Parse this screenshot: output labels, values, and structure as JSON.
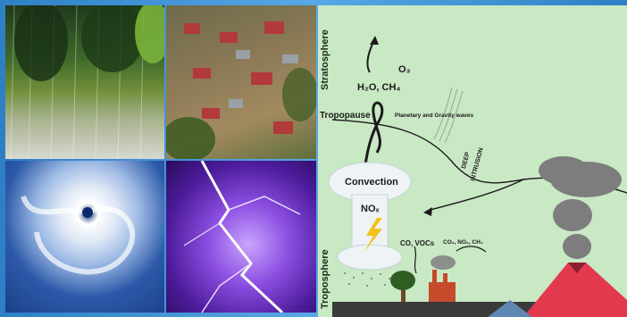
{
  "labels": {
    "stratosphere": "Stratosphere",
    "troposphere": "Troposphere",
    "tropopause": "Tropopause",
    "o3": "O₃",
    "h2o_ch4": "H₂O, CH₄",
    "waves": "Planetary and Gravity waves",
    "deep_intrusion_1": "DEEP",
    "deep_intrusion_2": "INTRUSION",
    "convection": "Convection",
    "nox": "NOₓ",
    "co_vocs": "CO, VOCs",
    "co2_no2_ch4": "CO₂, NO₂, CH₄"
  },
  "colors": {
    "sky_band": "#3b8fd0",
    "diagram_bg": "#c9e8c4",
    "volcano": "#e2394f",
    "lightning_bolt": "#f2c21b"
  }
}
